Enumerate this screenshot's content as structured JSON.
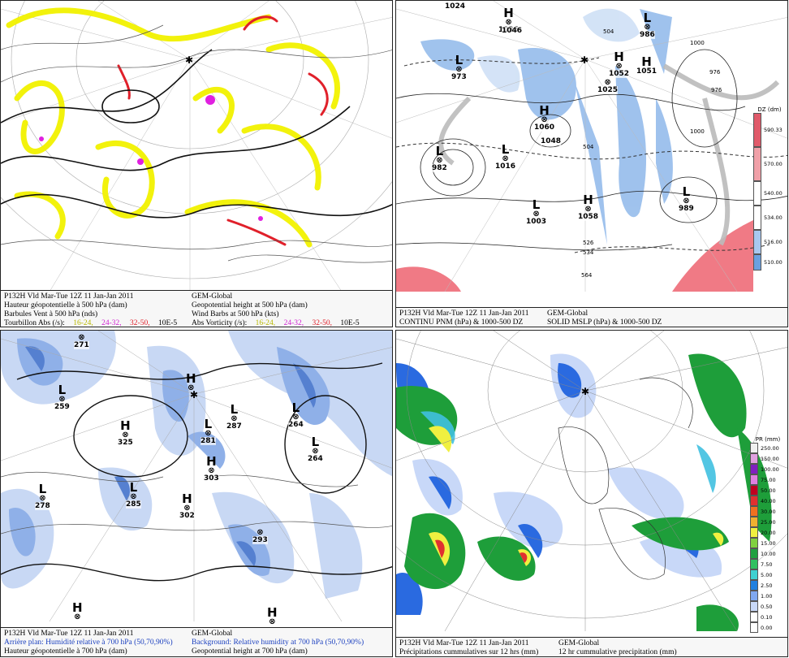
{
  "panels": {
    "p1": {
      "line1_left": "P132H Vld Mar-Tue 12Z 11 Jan-Jan 2011",
      "line1_right": "GEM-Global",
      "line2_left": "Hauteur géopotentielle à 500 hPa (dam)",
      "line2_right": "Geopotential height at 500 hPa (dam)",
      "line3_left": "Barbules Vent à 500 hPa (nds)",
      "line3_right": "Wind Barbs at 500 hPa  (kts)",
      "line4_left_label": "Tourbillon Abs (/s):",
      "line4_right_label": "Abs Vorticity (/s):",
      "bins": [
        {
          "label": "16-24,",
          "color": "#b8b800"
        },
        {
          "label": "24-32,",
          "color": "#d020d0"
        },
        {
          "label": "32-50,",
          "color": "#e0202a"
        },
        {
          "label": "10E-5",
          "color": "#000000"
        }
      ],
      "centers": [],
      "colors": {
        "yellow": "#f2f200",
        "magenta": "#e020e0",
        "red": "#e0202a"
      }
    },
    "p2": {
      "line1_left": "P132H Vld Mar-Tue 12Z 11 Jan-Jan 2011",
      "line1_right": "GEM-Global",
      "line2_left": "CONTINU PNM  (hPa) & 1000-500 DZ",
      "line2_right": "SOLID  MSLP (hPa) & 1000-500 DZ",
      "colorbar_title": "DZ (dm)",
      "colorbar": [
        {
          "label": "590.33",
          "color": "#e05a6a"
        },
        {
          "label": "570.00",
          "color": "#f0a0a8"
        },
        {
          "label": "540.00",
          "color": "#ffffff"
        },
        {
          "label": "534.00",
          "color": "#ffffff"
        },
        {
          "label": "516.00",
          "color": "#a8c8f0"
        },
        {
          "label": "510.00",
          "color": "#6aa0e0"
        }
      ],
      "centers": [
        {
          "type": "H",
          "value": "1024"
        },
        {
          "type": "H",
          "value": "1036"
        },
        {
          "type": "H",
          "value": "1046"
        },
        {
          "type": "L",
          "value": "986"
        },
        {
          "type": "L",
          "value": "973"
        },
        {
          "type": "H",
          "value": "1052"
        },
        {
          "type": "H",
          "value": "1051"
        },
        {
          "type": "H",
          "value": "1025"
        },
        {
          "type": "H",
          "value": "1060"
        },
        {
          "type": "H",
          "value": "1048"
        },
        {
          "type": "L",
          "value": "982"
        },
        {
          "type": "L",
          "value": "1016"
        },
        {
          "type": "H",
          "value": "1058"
        },
        {
          "type": "L",
          "value": "1003"
        },
        {
          "type": "L",
          "value": "989"
        }
      ],
      "contour_labels": [
        "1000",
        "976",
        "504",
        "526",
        "534",
        "564",
        "570"
      ]
    },
    "p3": {
      "line1_left": "P132H Vld Mar-Tue 12Z 11 Jan-Jan 2011",
      "line1_right": "GEM-Global",
      "line2_left": "Arrière plan: Humidité relative à 700 hPa (50,70,90%)",
      "line2_right": "Background: Relative humidity at 700 hPa (50,70,90%)",
      "line3_left": "Hauteur géopotentielle à 700 hPa (dam)",
      "line3_right": "Geopotential height at 700 hPa (dam)",
      "centers": [
        {
          "type": "L",
          "value": "271"
        },
        {
          "type": "L",
          "value": "259"
        },
        {
          "type": "H",
          "value": "325"
        },
        {
          "type": "H",
          "value": "319"
        },
        {
          "type": "L",
          "value": "281"
        },
        {
          "type": "L",
          "value": "287"
        },
        {
          "type": "L",
          "value": "264"
        },
        {
          "type": "L",
          "value": "264"
        },
        {
          "type": "L",
          "value": "278"
        },
        {
          "type": "L",
          "value": "285"
        },
        {
          "type": "H",
          "value": "302"
        },
        {
          "type": "H",
          "value": "303"
        },
        {
          "type": "L",
          "value": "293"
        },
        {
          "type": "H",
          "value": ""
        },
        {
          "type": "H",
          "value": ""
        }
      ],
      "colors": {
        "light": "#c8d8f4",
        "mid": "#8fb0e8",
        "dark": "#5580d0"
      }
    },
    "p4": {
      "line1_left": "P132H Vld Mar-Tue 12Z 11 Jan-Jan 2011",
      "line1_right": "GEM-Global",
      "line2_left": "Précipitations cummulatives sur 12 hrs (mm)",
      "line2_right": "12 hr cummulative precipitation     (mm)",
      "colorbar_title": "PR (mm)",
      "colorbar": [
        {
          "label": "250.00",
          "color": "#f0f0f0"
        },
        {
          "label": "150.00",
          "color": "#e0a0e0"
        },
        {
          "label": "100.00",
          "color": "#8020c0"
        },
        {
          "label": "75.00",
          "color": "#e080e0"
        },
        {
          "label": "50.00",
          "color": "#c00020"
        },
        {
          "label": "40.00",
          "color": "#e03030"
        },
        {
          "label": "30.00",
          "color": "#f07020"
        },
        {
          "label": "25.00",
          "color": "#f0b030"
        },
        {
          "label": "20.00",
          "color": "#f0f040"
        },
        {
          "label": "15.00",
          "color": "#80d040"
        },
        {
          "label": "10.00",
          "color": "#20a040"
        },
        {
          "label": "7.50",
          "color": "#30c060"
        },
        {
          "label": "5.00",
          "color": "#40d0d0"
        },
        {
          "label": "2.50",
          "color": "#2080e0"
        },
        {
          "label": "1.00",
          "color": "#80a8f0"
        },
        {
          "label": "0.50",
          "color": "#c8d8f8"
        },
        {
          "label": "0.10",
          "color": "#ffffff"
        },
        {
          "label": "0.00",
          "color": "#ffffff"
        }
      ],
      "colors": {
        "green": "#1e9e3a",
        "cyan": "#40c0e0",
        "blue": "#2a6ae0",
        "yellow": "#f0f040",
        "red": "#e03030"
      }
    }
  }
}
